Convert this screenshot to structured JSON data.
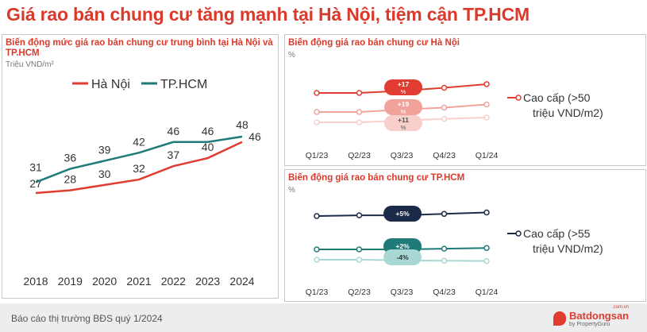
{
  "page": {
    "title": "Giá rao bán chung cư tăng mạnh tại Hà Nội, tiệm cận TP.HCM",
    "footer": "Báo cáo thị trường BĐS quý 1/2024",
    "logo": {
      "name": "Batdongsan",
      "sub": "by PropertyGuru",
      "suffix": ".com.vn"
    }
  },
  "colors": {
    "red": "#e03c31",
    "pink": "#f1a39b",
    "lightpink": "#f8cfca",
    "teal": "#1e7b77",
    "navy": "#1c2a4a",
    "lightteal": "#a9d7d3"
  },
  "chart_data": [
    {
      "type": "line",
      "title": "Biến động mức giá rao bán chung cư trung bình tại Hà Nội và TP.HCM",
      "ylabel": "Triệu VND/m²",
      "x": [
        "2018",
        "2019",
        "2020",
        "2021",
        "2022",
        "2023",
        "2024"
      ],
      "series": [
        {
          "name": "Hà Nội",
          "color": "#e03c31",
          "values": [
            27,
            28,
            30,
            32,
            37,
            40,
            46
          ]
        },
        {
          "name": "TP.HCM",
          "color": "#1e7b77",
          "values": [
            31,
            36,
            39,
            42,
            46,
            46,
            48
          ]
        }
      ],
      "legend": "top-left",
      "ylim": [
        22,
        52
      ]
    },
    {
      "type": "line",
      "title": "Biến động giá rao bán chung cư Hà Nội",
      "ylabel": "%",
      "x": [
        "Q1/23",
        "Q2/23",
        "Q3/23",
        "Q4/23",
        "Q1/24"
      ],
      "series": [
        {
          "name": "Cao cấp (>50 triệu VND/m2)",
          "color": "#e03c31",
          "values": [
            100,
            100,
            104,
            110,
            117
          ],
          "label": "+17 %"
        },
        {
          "name": "",
          "color": "#f1a39b",
          "values": [
            100,
            100,
            106,
            111,
            119
          ],
          "label": "+19 %"
        },
        {
          "name": "",
          "color": "#f8cfca",
          "values": [
            100,
            100,
            104,
            108,
            111
          ],
          "label": "+11 %"
        }
      ],
      "legend": "right"
    },
    {
      "type": "line",
      "title": "Biến động giá rao bán chung cư TP.HCM",
      "ylabel": "%",
      "x": [
        "Q1/23",
        "Q2/23",
        "Q3/23",
        "Q4/23",
        "Q1/24"
      ],
      "series": [
        {
          "name": "Cao cấp (>55 triệu VND/m2)",
          "color": "#1c2a4a",
          "values": [
            100,
            101,
            101,
            103,
            105
          ],
          "label": "+5%"
        },
        {
          "name": "",
          "color": "#1e7b77",
          "values": [
            100,
            100,
            100,
            101,
            102
          ],
          "label": "+2%"
        },
        {
          "name": "",
          "color": "#a9d7d3",
          "values": [
            100,
            100,
            98,
            97,
            96
          ],
          "label": "-4%"
        }
      ],
      "legend": "right"
    }
  ]
}
